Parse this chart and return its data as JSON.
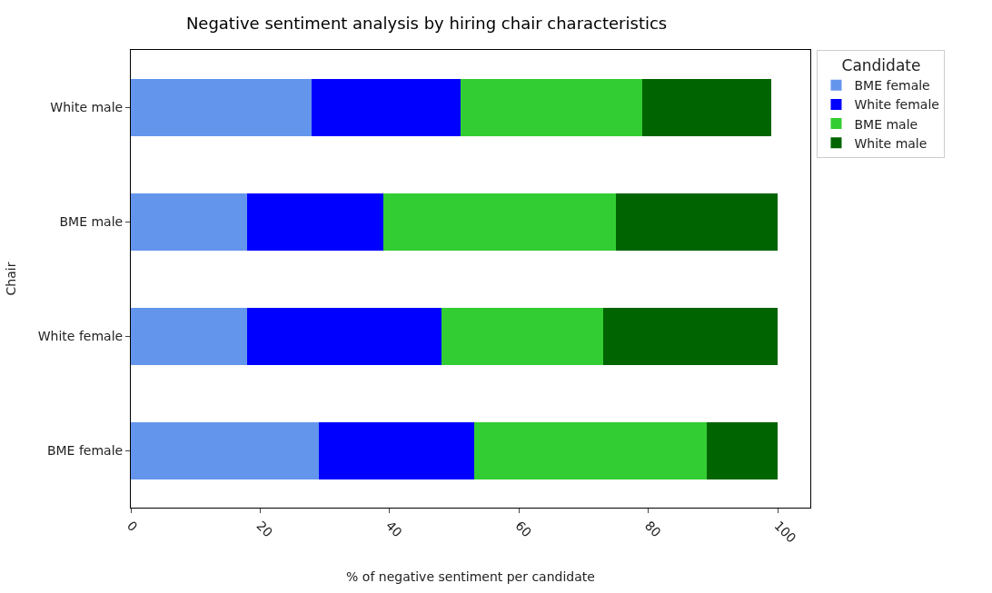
{
  "chart_data": {
    "type": "bar",
    "orientation": "horizontal",
    "stacked": true,
    "title": "Negative sentiment analysis by hiring chair characteristics",
    "xlabel": "% of negative sentiment per candidate",
    "ylabel": "Chair",
    "legend_title": "Candidate",
    "legend": "top right",
    "grid": false,
    "categories": [
      "White male",
      "BME male",
      "White female",
      "BME female"
    ],
    "xlim": [
      0,
      105
    ],
    "xticks": [
      0,
      20,
      40,
      60,
      80,
      100
    ],
    "series": [
      {
        "name": "BME female",
        "color": "#6495ed",
        "values": [
          28,
          18,
          18,
          29
        ]
      },
      {
        "name": "White female",
        "color": "#0000ff",
        "values": [
          23,
          21,
          30,
          24
        ]
      },
      {
        "name": "BME male",
        "color": "#32cd32",
        "values": [
          28,
          36,
          25,
          36
        ]
      },
      {
        "name": "White male",
        "color": "#006400",
        "values": [
          20,
          25,
          27,
          11
        ]
      }
    ]
  }
}
